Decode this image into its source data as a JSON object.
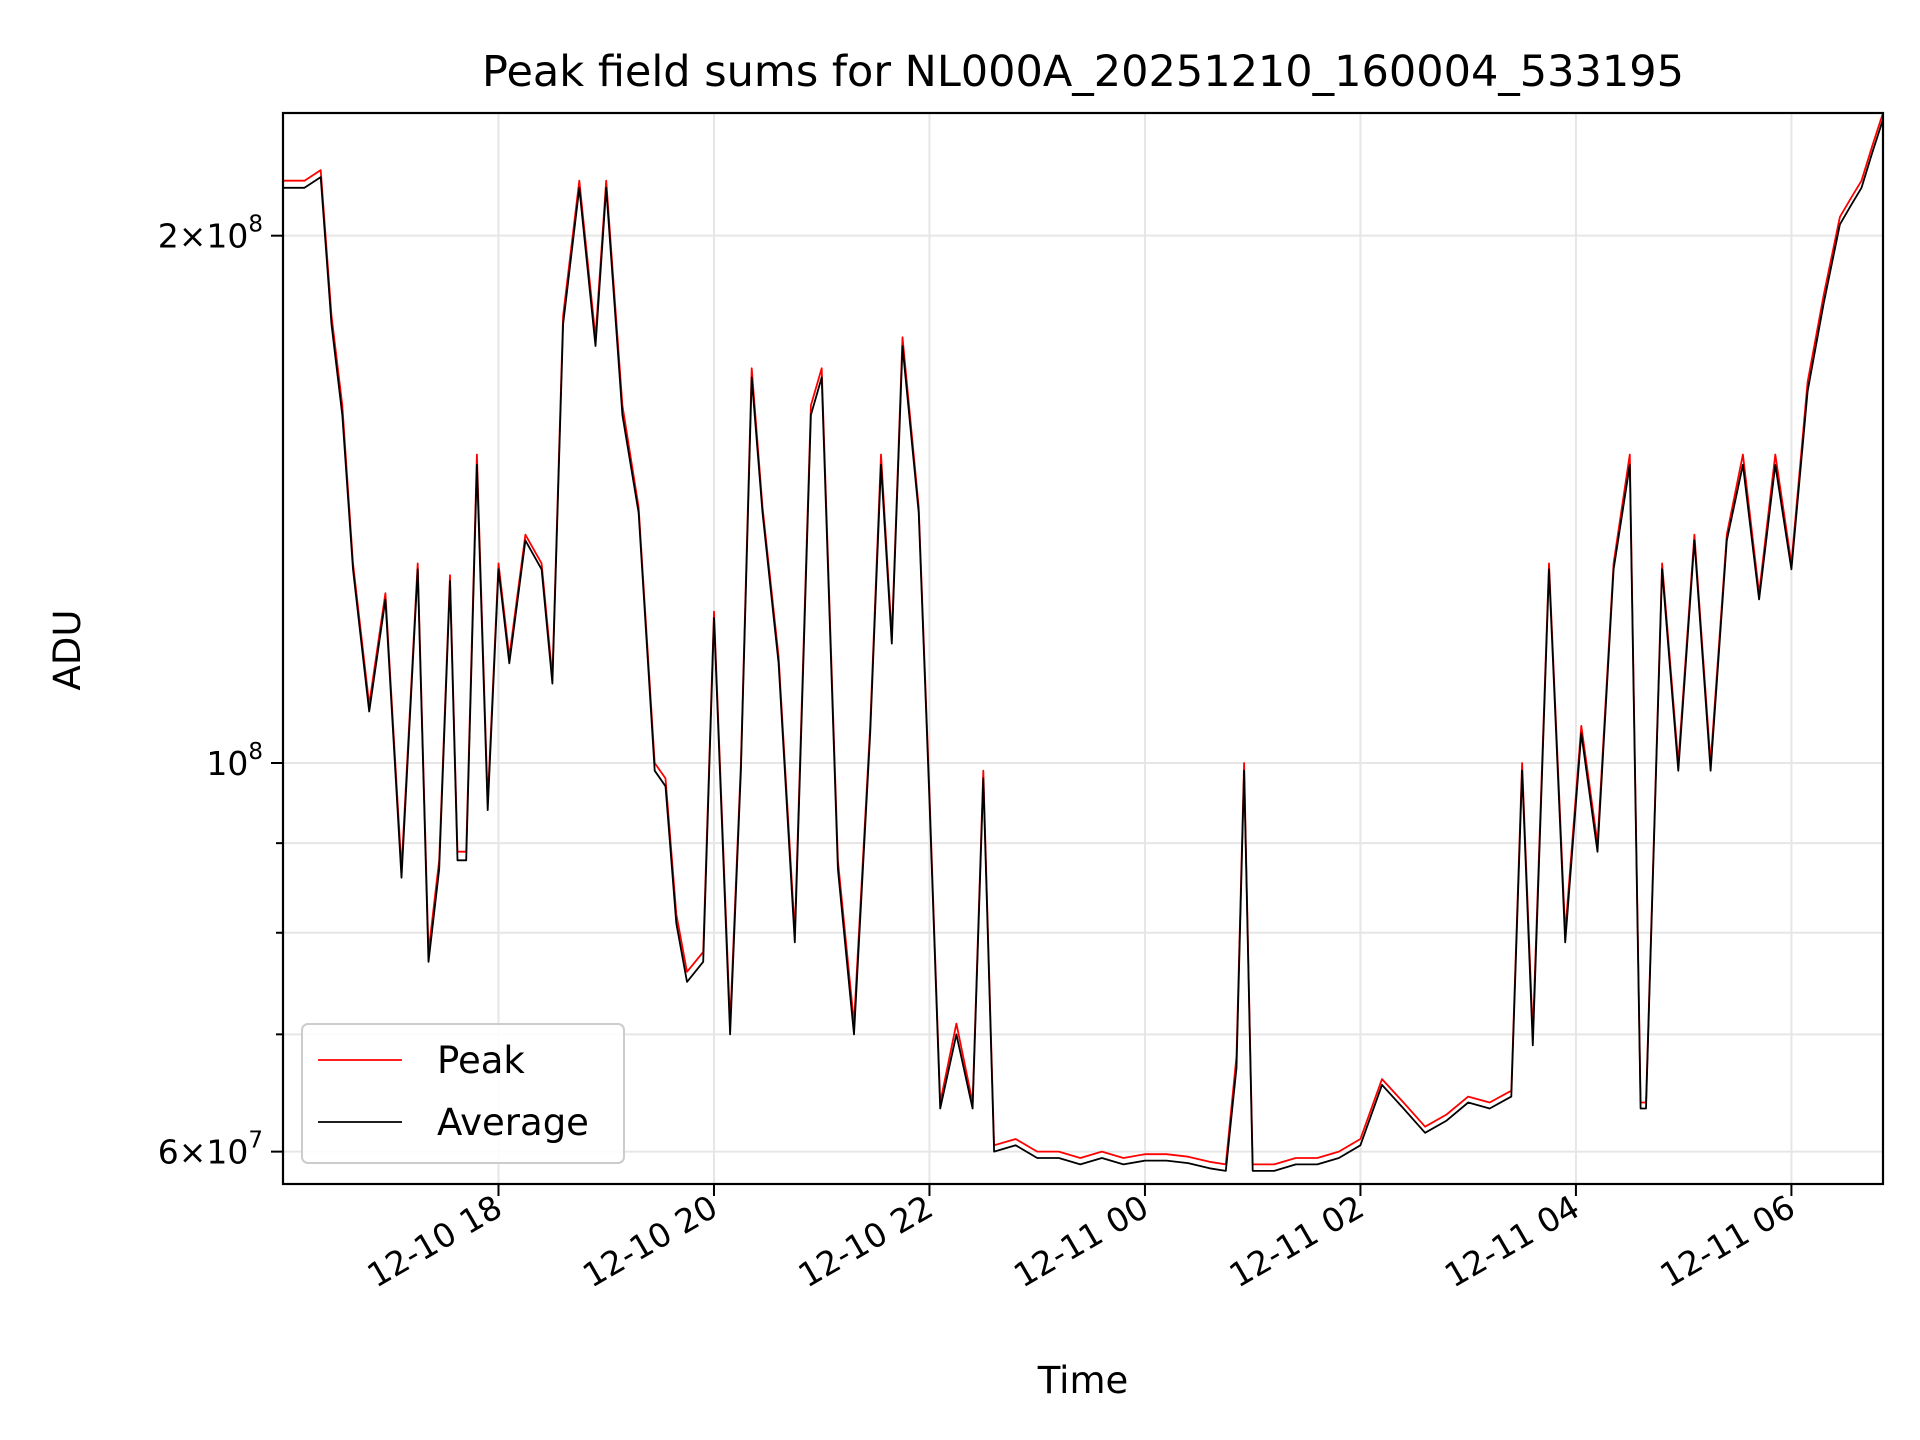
{
  "chart_data": {
    "type": "line",
    "title": "Peak field sums for NL000A_20251210_160004_533195",
    "xlabel": "Time",
    "ylabel": "ADU",
    "yscale": "log",
    "grid": true,
    "legend_position": "lower-left",
    "x_start": "2025-12-10 16:00",
    "x_end": "2025-12-11 06:50",
    "xlim_hours": [
      0,
      14.85
    ],
    "ylim": [
      57500000,
      235000000
    ],
    "x_ticks": [
      {
        "label": "12-10 18",
        "hours": 2
      },
      {
        "label": "12-10 20",
        "hours": 4
      },
      {
        "label": "12-10 22",
        "hours": 6
      },
      {
        "label": "12-11 00",
        "hours": 8
      },
      {
        "label": "12-11 02",
        "hours": 10
      },
      {
        "label": "12-11 04",
        "hours": 12
      },
      {
        "label": "12-11 06",
        "hours": 14
      }
    ],
    "y_ticks": [
      {
        "value": 60000000,
        "mantissa": "6×10",
        "exp": "7"
      },
      {
        "value": 100000000,
        "mantissa": "10",
        "exp": "8"
      },
      {
        "value": 200000000,
        "mantissa": "2×10",
        "exp": "8"
      }
    ],
    "y_minor_ticks": [
      70000000,
      80000000,
      90000000
    ],
    "series": [
      {
        "name": "Peak",
        "color": "#ff0000",
        "x_hours": [
          0.0,
          0.2,
          0.35,
          0.45,
          0.55,
          0.65,
          0.8,
          0.95,
          1.1,
          1.25,
          1.35,
          1.45,
          1.55,
          1.62,
          1.7,
          1.8,
          1.9,
          2.0,
          2.1,
          2.25,
          2.4,
          2.5,
          2.6,
          2.75,
          2.9,
          3.0,
          3.15,
          3.3,
          3.45,
          3.55,
          3.65,
          3.75,
          3.9,
          4.0,
          4.15,
          4.25,
          4.35,
          4.45,
          4.6,
          4.75,
          4.9,
          5.0,
          5.15,
          5.3,
          5.45,
          5.55,
          5.65,
          5.75,
          5.9,
          6.0,
          6.1,
          6.25,
          6.4,
          6.5,
          6.6,
          6.8,
          7.0,
          7.2,
          7.4,
          7.6,
          7.8,
          8.0,
          8.2,
          8.4,
          8.6,
          8.75,
          8.85,
          8.92,
          9.0,
          9.2,
          9.4,
          9.6,
          9.8,
          10.0,
          10.2,
          10.4,
          10.6,
          10.8,
          11.0,
          11.2,
          11.4,
          11.5,
          11.6,
          11.75,
          11.9,
          12.05,
          12.2,
          12.35,
          12.5,
          12.6,
          12.65,
          12.8,
          12.95,
          13.1,
          13.25,
          13.4,
          13.55,
          13.7,
          13.85,
          14.0,
          14.15,
          14.3,
          14.45,
          14.55,
          14.65,
          14.75,
          14.85
        ],
        "values": [
          215000000,
          215000000,
          218000000,
          180000000,
          160000000,
          130000000,
          108000000,
          125000000,
          87000000,
          130000000,
          78000000,
          88000000,
          128000000,
          89000000,
          89000000,
          150000000,
          95000000,
          130000000,
          115000000,
          135000000,
          130000000,
          112000000,
          180000000,
          215000000,
          175000000,
          215000000,
          160000000,
          140000000,
          100000000,
          98000000,
          82000000,
          76000000,
          78000000,
          122000000,
          71000000,
          100000000,
          168000000,
          140000000,
          115000000,
          80000000,
          160000000,
          168000000,
          88000000,
          71000000,
          105000000,
          150000000,
          118000000,
          175000000,
          140000000,
          96000000,
          64000000,
          71000000,
          64000000,
          99000000,
          60500000,
          61000000,
          60000000,
          60000000,
          59500000,
          60000000,
          59500000,
          59800000,
          59800000,
          59600000,
          59200000,
          59000000,
          68000000,
          100000000,
          59000000,
          59000000,
          59500000,
          59500000,
          60000000,
          61000000,
          66000000,
          64000000,
          62000000,
          63000000,
          64500000,
          64000000,
          65000000,
          100000000,
          70000000,
          130000000,
          80000000,
          105000000,
          90000000,
          130000000,
          150000000,
          64000000,
          64000000,
          130000000,
          100000000,
          135000000,
          100000000,
          135000000,
          150000000,
          125000000,
          150000000,
          130000000,
          165000000,
          185000000,
          205000000,
          210000000,
          215000000,
          225000000,
          235000000
        ]
      },
      {
        "name": "Average",
        "color": "#000000",
        "x_hours": [
          0.0,
          0.2,
          0.35,
          0.45,
          0.55,
          0.65,
          0.8,
          0.95,
          1.1,
          1.25,
          1.35,
          1.45,
          1.55,
          1.62,
          1.7,
          1.8,
          1.9,
          2.0,
          2.1,
          2.25,
          2.4,
          2.5,
          2.6,
          2.75,
          2.9,
          3.0,
          3.15,
          3.3,
          3.45,
          3.55,
          3.65,
          3.75,
          3.9,
          4.0,
          4.15,
          4.25,
          4.35,
          4.45,
          4.6,
          4.75,
          4.9,
          5.0,
          5.15,
          5.3,
          5.45,
          5.55,
          5.65,
          5.75,
          5.9,
          6.0,
          6.1,
          6.25,
          6.4,
          6.5,
          6.6,
          6.8,
          7.0,
          7.2,
          7.4,
          7.6,
          7.8,
          8.0,
          8.2,
          8.4,
          8.6,
          8.75,
          8.85,
          8.92,
          9.0,
          9.2,
          9.4,
          9.6,
          9.8,
          10.0,
          10.2,
          10.4,
          10.6,
          10.8,
          11.0,
          11.2,
          11.4,
          11.5,
          11.6,
          11.75,
          11.9,
          12.05,
          12.2,
          12.35,
          12.5,
          12.6,
          12.65,
          12.8,
          12.95,
          13.1,
          13.25,
          13.4,
          13.55,
          13.7,
          13.85,
          14.0,
          14.15,
          14.3,
          14.45,
          14.55,
          14.65,
          14.75,
          14.85
        ],
        "values": [
          213000000,
          213000000,
          216000000,
          178000000,
          158000000,
          129000000,
          107000000,
          124000000,
          86000000,
          129000000,
          77000000,
          87000000,
          127000000,
          88000000,
          88000000,
          148000000,
          94000000,
          129000000,
          114000000,
          134000000,
          129000000,
          111000000,
          178000000,
          213000000,
          173000000,
          213000000,
          158000000,
          139000000,
          99000000,
          97000000,
          81000000,
          75000000,
          77000000,
          121000000,
          70000000,
          99000000,
          166000000,
          139000000,
          114000000,
          79000000,
          158000000,
          166000000,
          87000000,
          70000000,
          104000000,
          148000000,
          117000000,
          173000000,
          139000000,
          95000000,
          63500000,
          70000000,
          63500000,
          98000000,
          60000000,
          60500000,
          59500000,
          59500000,
          59000000,
          59500000,
          59000000,
          59300000,
          59300000,
          59100000,
          58700000,
          58500000,
          67000000,
          99000000,
          58500000,
          58500000,
          59000000,
          59000000,
          59500000,
          60500000,
          65500000,
          63500000,
          61500000,
          62500000,
          64000000,
          63500000,
          64500000,
          99000000,
          69000000,
          129000000,
          79000000,
          104000000,
          89000000,
          129000000,
          148000000,
          63500000,
          63500000,
          129000000,
          99000000,
          134000000,
          99000000,
          134000000,
          148000000,
          124000000,
          148000000,
          129000000,
          163000000,
          183000000,
          203000000,
          208000000,
          213000000,
          223000000,
          233000000
        ]
      }
    ]
  }
}
